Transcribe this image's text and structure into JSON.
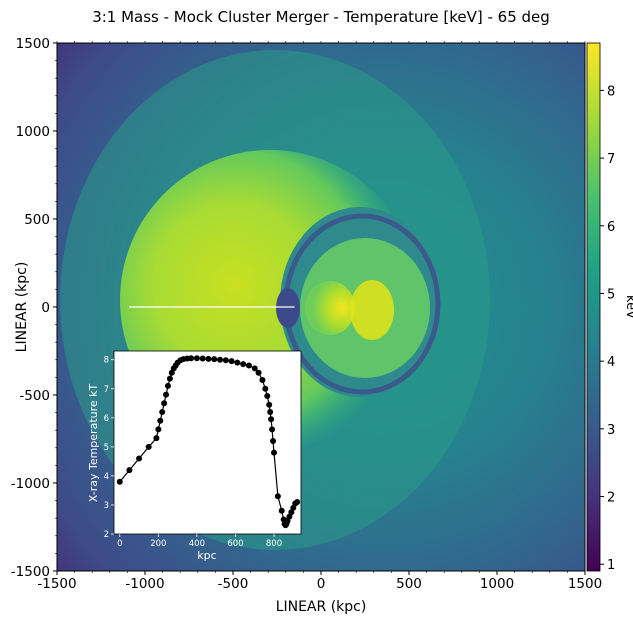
{
  "chart_data": [
    {
      "type": "heatmap",
      "title": "3:1 Mass - Mock Cluster Merger - Temperature [keV] - 65 deg",
      "xlabel": "LINEAR (kpc)",
      "ylabel": "LINEAR (kpc)",
      "xlim": [
        -1500,
        1500
      ],
      "ylim": [
        -1500,
        1500
      ],
      "x_ticks": [
        -1500,
        -1000,
        -500,
        0,
        500,
        1000,
        1500
      ],
      "y_ticks": [
        -1500,
        -1000,
        -500,
        0,
        500,
        1000,
        1500
      ],
      "colorbar": {
        "label": "keV",
        "range": [
          0.9,
          8.7
        ],
        "ticks": [
          1,
          2,
          3,
          4,
          5,
          6,
          7,
          8
        ],
        "colormap": "viridis"
      },
      "profile_line": {
        "x": [
          -1090,
          -150
        ],
        "y": [
          0,
          0
        ],
        "color": "#ffffff"
      }
    },
    {
      "type": "line",
      "xlabel": "kpc",
      "ylabel": "X-ray Temperature kT",
      "xlim": [
        -30,
        940
      ],
      "ylim": [
        2,
        8.3
      ],
      "x_ticks": [
        0,
        200,
        400,
        600,
        800
      ],
      "y_ticks": [
        2,
        3,
        4,
        5,
        6,
        7,
        8
      ],
      "marker": "circle",
      "color": "#000000",
      "series": [
        {
          "x": [
            0,
            50,
            100,
            150,
            190,
            200,
            210,
            220,
            230,
            240,
            250,
            260,
            270,
            280,
            290,
            300,
            315,
            330,
            350,
            370,
            400,
            430,
            460,
            490,
            520,
            550,
            580,
            610,
            640,
            670,
            700,
            720,
            740,
            755,
            765,
            775,
            780,
            785,
            790,
            795,
            800,
            820,
            840,
            850,
            855,
            860,
            865,
            870,
            880,
            890,
            900,
            910,
            920
          ],
          "y": [
            3.8,
            4.2,
            4.6,
            5.0,
            5.3,
            5.6,
            5.9,
            6.2,
            6.5,
            6.8,
            7.1,
            7.35,
            7.55,
            7.7,
            7.8,
            7.9,
            7.98,
            8.02,
            8.04,
            8.05,
            8.05,
            8.04,
            8.03,
            8.02,
            8.0,
            7.98,
            7.95,
            7.9,
            7.85,
            7.8,
            7.7,
            7.55,
            7.3,
            7.0,
            6.75,
            6.45,
            6.2,
            5.95,
            5.6,
            5.2,
            4.8,
            3.3,
            2.8,
            2.5,
            2.35,
            2.3,
            2.35,
            2.45,
            2.6,
            2.75,
            2.9,
            3.05,
            3.1
          ]
        }
      ]
    }
  ]
}
